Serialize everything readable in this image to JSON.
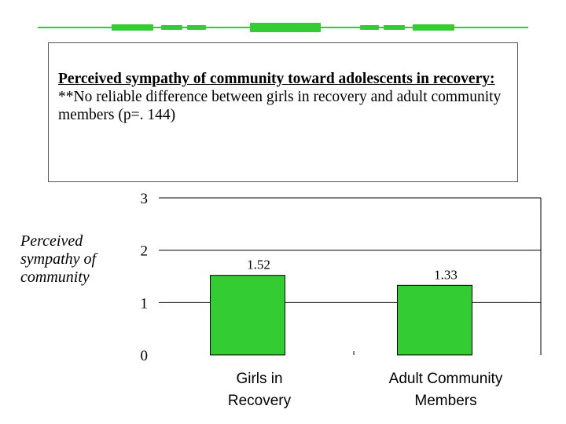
{
  "caption": {
    "heading": "Perceived sympathy of community toward adolescents in recovery:",
    "note": "**No reliable difference between girls in recovery and adult community members (p=. 144)"
  },
  "colors": {
    "accent": "#33cc33",
    "bar": "#33cc33"
  },
  "chart_data": {
    "type": "bar",
    "title": "",
    "xlabel": "",
    "ylabel": "Perceived sympathy of community",
    "ylim": [
      0,
      3
    ],
    "yticks": [
      0,
      1,
      2,
      3
    ],
    "grid": true,
    "categories": [
      "Girls in Recovery",
      "Adult Community Members"
    ],
    "values": [
      1.52,
      1.33
    ],
    "value_labels": [
      "1.52",
      "1.33"
    ]
  }
}
